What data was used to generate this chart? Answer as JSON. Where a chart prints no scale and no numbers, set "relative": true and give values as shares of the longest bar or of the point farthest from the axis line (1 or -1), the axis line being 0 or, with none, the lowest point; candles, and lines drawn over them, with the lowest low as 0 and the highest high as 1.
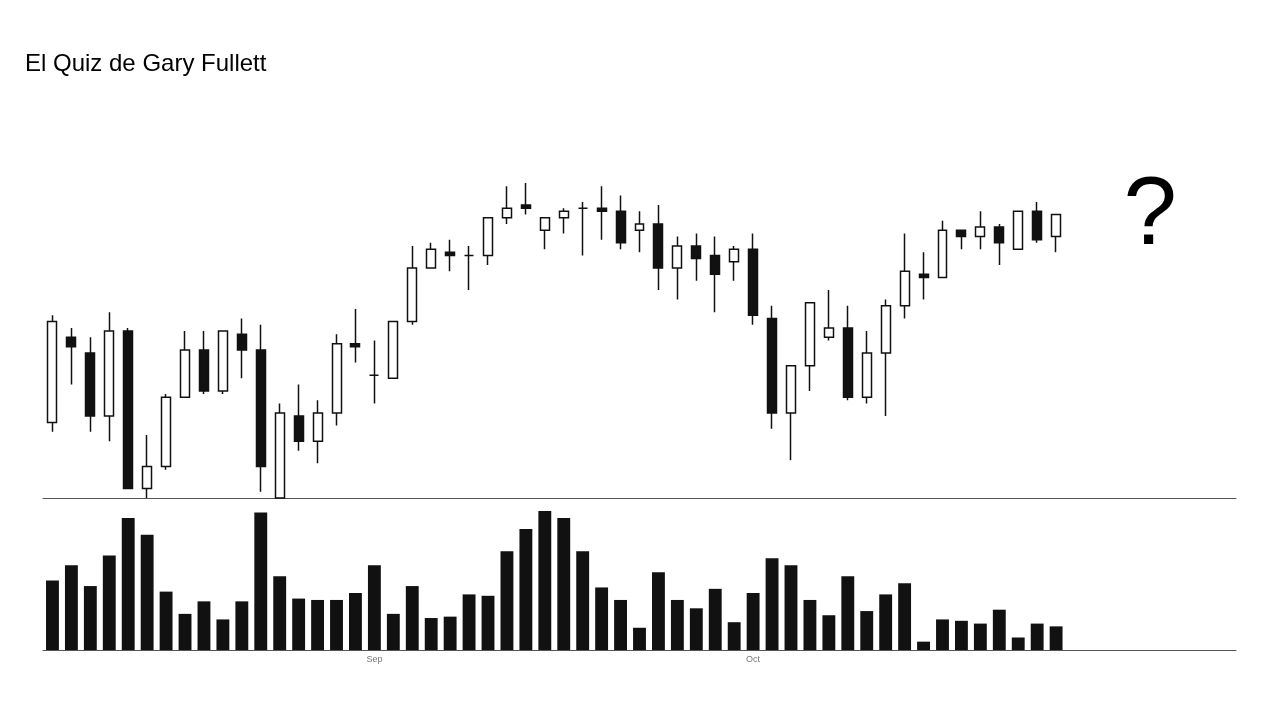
{
  "chart_data": [
    {
      "type": "candlestick",
      "title": "El Quiz de Gary Fullett",
      "annotations": [
        "?"
      ],
      "relative": true,
      "color": "#111111",
      "categories": [
        null,
        null,
        null,
        null,
        null,
        null,
        null,
        null,
        null,
        null,
        null,
        null,
        null,
        null,
        null,
        null,
        null,
        null,
        null,
        null,
        null,
        null,
        null,
        null,
        null,
        null,
        null,
        null,
        null,
        null,
        null,
        null,
        null,
        null,
        null,
        null,
        null,
        null,
        null,
        null,
        null,
        null,
        null,
        null,
        null,
        null,
        null,
        null,
        null,
        null,
        null,
        null,
        null,
        null,
        null,
        null,
        null,
        null,
        null,
        null,
        null,
        null,
        null
      ],
      "ohlc": [
        [
          0.24,
          0.58,
          0.21,
          0.56
        ],
        [
          0.51,
          0.54,
          0.36,
          0.48
        ],
        [
          0.46,
          0.51,
          0.21,
          0.26
        ],
        [
          0.26,
          0.59,
          0.18,
          0.53
        ],
        [
          0.53,
          0.54,
          0.03,
          0.03
        ],
        [
          0.03,
          0.2,
          0,
          0.1
        ],
        [
          0.1,
          0.33,
          0.09,
          0.32
        ],
        [
          0.32,
          0.53,
          0.32,
          0.47
        ],
        [
          0.47,
          0.53,
          0.33,
          0.34
        ],
        [
          0.34,
          0.53,
          0.33,
          0.53
        ],
        [
          0.52,
          0.57,
          0.38,
          0.47
        ],
        [
          0.47,
          0.55,
          0.02,
          0.1
        ],
        [
          0,
          0.3,
          0,
          0.27
        ],
        [
          0.26,
          0.36,
          0.15,
          0.18
        ],
        [
          0.18,
          0.31,
          0.11,
          0.27
        ],
        [
          0.27,
          0.52,
          0.23,
          0.49
        ],
        [
          0.49,
          0.6,
          0.43,
          0.48
        ],
        [
          0.39,
          0.5,
          0.3,
          0.39
        ],
        [
          0.38,
          0.56,
          0.38,
          0.56
        ],
        [
          0.56,
          0.8,
          0.55,
          0.73
        ],
        [
          0.73,
          0.81,
          0.73,
          0.79
        ],
        [
          0.78,
          0.82,
          0.72,
          0.77
        ],
        [
          0.77,
          0.8,
          0.66,
          0.77
        ],
        [
          0.77,
          0.89,
          0.74,
          0.89
        ],
        [
          0.89,
          0.99,
          0.87,
          0.92
        ],
        [
          0.93,
          1,
          0.9,
          0.92
        ],
        [
          0.85,
          0.89,
          0.79,
          0.89
        ],
        [
          0.89,
          0.92,
          0.84,
          0.91
        ],
        [
          0.92,
          0.94,
          0.77,
          0.92
        ],
        [
          0.92,
          0.99,
          0.82,
          0.91
        ],
        [
          0.91,
          0.96,
          0.79,
          0.81
        ],
        [
          0.85,
          0.91,
          0.78,
          0.87
        ],
        [
          0.87,
          0.93,
          0.66,
          0.73
        ],
        [
          0.73,
          0.83,
          0.63,
          0.8
        ],
        [
          0.8,
          0.84,
          0.69,
          0.76
        ],
        [
          0.77,
          0.83,
          0.59,
          0.71
        ],
        [
          0.75,
          0.8,
          0.69,
          0.79
        ],
        [
          0.79,
          0.84,
          0.55,
          0.58
        ],
        [
          0.57,
          0.61,
          0.22,
          0.27
        ],
        [
          0.27,
          0.42,
          0.12,
          0.42
        ],
        [
          0.42,
          0.62,
          0.34,
          0.62
        ],
        [
          0.51,
          0.66,
          0.5,
          0.54
        ],
        [
          0.54,
          0.61,
          0.31,
          0.32
        ],
        [
          0.32,
          0.53,
          0.3,
          0.46
        ],
        [
          0.46,
          0.63,
          0.26,
          0.61
        ],
        [
          0.61,
          0.84,
          0.57,
          0.72
        ],
        [
          0.71,
          0.78,
          0.63,
          0.7
        ],
        [
          0.7,
          0.88,
          0.7,
          0.85
        ],
        [
          0.85,
          0.85,
          0.79,
          0.83
        ],
        [
          0.83,
          0.91,
          0.79,
          0.86
        ],
        [
          0.86,
          0.87,
          0.74,
          0.81
        ],
        [
          0.79,
          0.91,
          0.79,
          0.91
        ],
        [
          0.91,
          0.94,
          0.81,
          0.82
        ],
        [
          0.83,
          0.9,
          0.78,
          0.9
        ],
        null,
        null,
        null,
        null,
        null,
        null,
        null,
        null,
        null
      ]
    },
    {
      "type": "bar",
      "relative": true,
      "color": "#111111",
      "categories": [
        null,
        null,
        null,
        null,
        null,
        null,
        null,
        null,
        null,
        null,
        null,
        null,
        null,
        null,
        null,
        null,
        null,
        "Sep",
        null,
        null,
        null,
        null,
        null,
        null,
        null,
        null,
        null,
        null,
        null,
        null,
        null,
        null,
        null,
        null,
        null,
        null,
        null,
        "Oct",
        null,
        null,
        null,
        null,
        null,
        null,
        null,
        null,
        null,
        null,
        null,
        null,
        null,
        null,
        null,
        null,
        null,
        null,
        null,
        null,
        null,
        null,
        null,
        null,
        null
      ],
      "values": [
        0.5,
        0.61,
        0.46,
        0.68,
        0.95,
        0.83,
        0.42,
        0.26,
        0.35,
        0.22,
        0.35,
        0.99,
        0.53,
        0.37,
        0.36,
        0.36,
        0.41,
        0.61,
        0.26,
        0.46,
        0.23,
        0.24,
        0.4,
        0.39,
        0.71,
        0.87,
        1,
        0.95,
        0.71,
        0.45,
        0.36,
        0.16,
        0.56,
        0.36,
        0.3,
        0.44,
        0.2,
        0.41,
        0.66,
        0.61,
        0.36,
        0.25,
        0.53,
        0.28,
        0.4,
        0.48,
        0.06,
        0.22,
        0.21,
        0.19,
        0.29,
        0.09,
        0.19,
        0.17,
        null,
        null,
        null,
        null,
        null,
        null,
        null,
        null,
        null
      ]
    }
  ]
}
